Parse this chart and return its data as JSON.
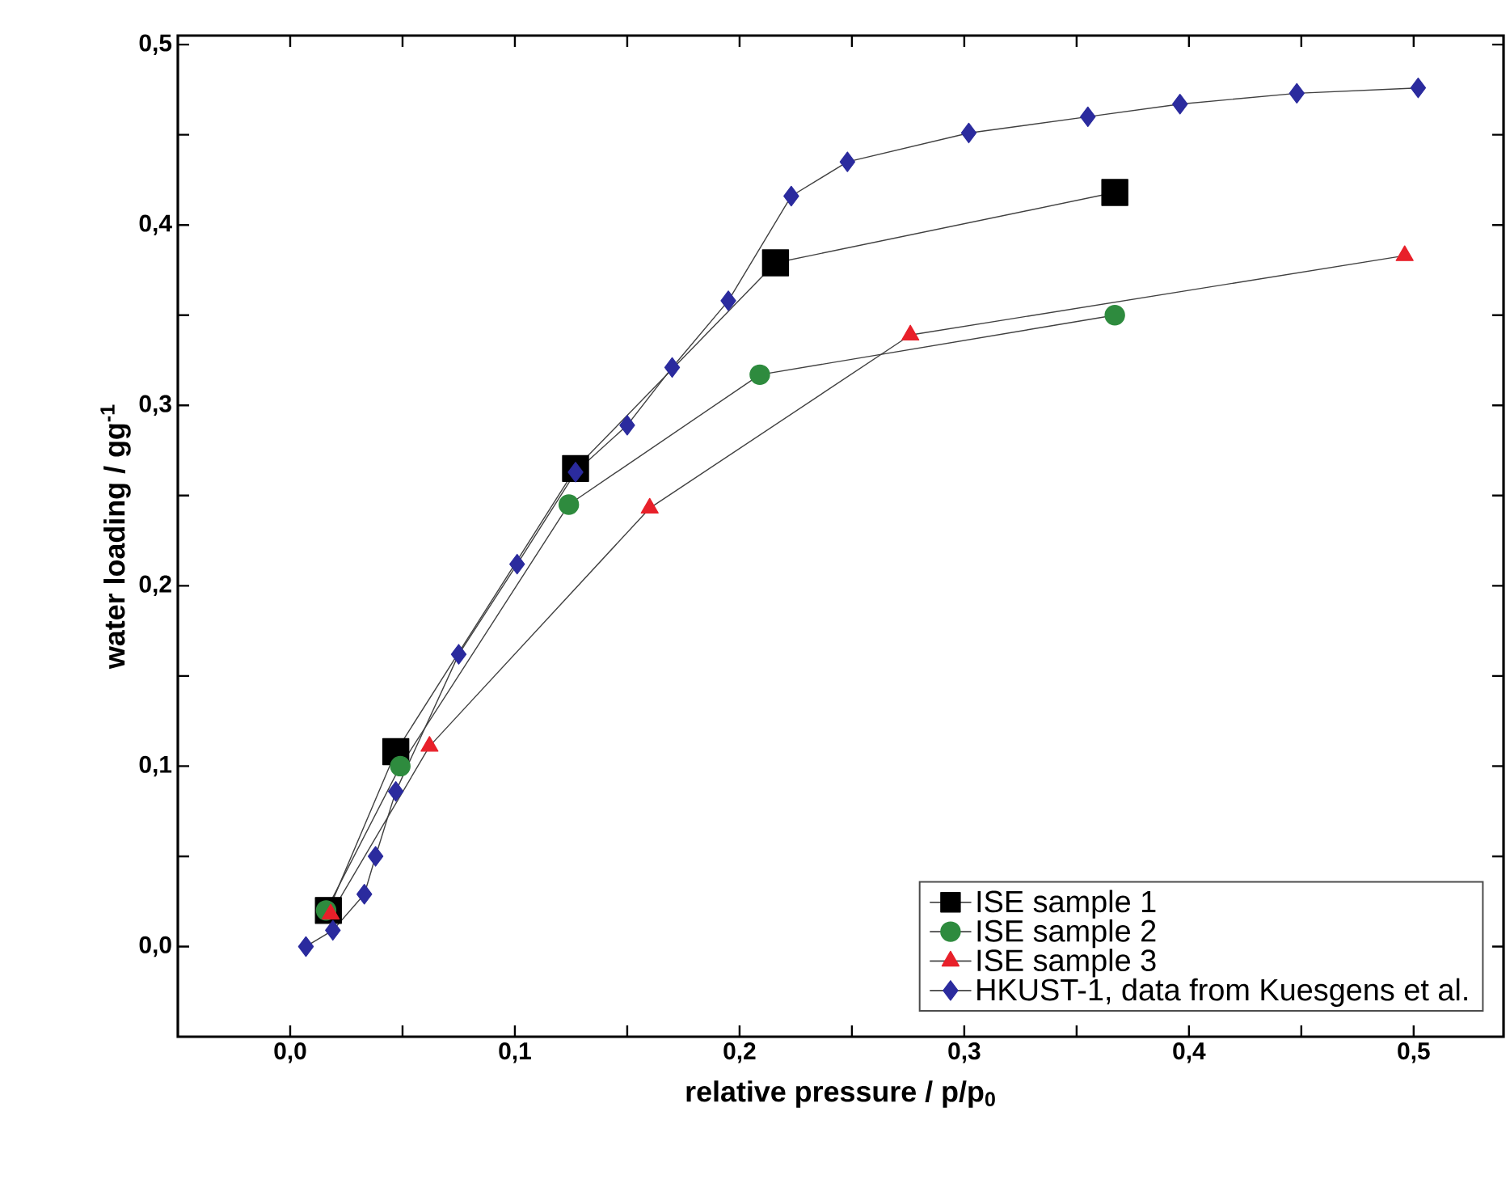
{
  "chart_data": {
    "type": "line",
    "xlabel": "relative pressure / p/p$_{0}$",
    "ylabel": "water loading / gg$^{-1}$",
    "xlim": [
      -0.05,
      0.54
    ],
    "ylim": [
      -0.05,
      0.505
    ],
    "xticks": [
      {
        "value": 0,
        "label": "0,0"
      },
      {
        "value": 0.05,
        "label": null
      },
      {
        "value": 0.1,
        "label": "0,1"
      },
      {
        "value": 0.15,
        "label": null
      },
      {
        "value": 0.2,
        "label": "0,2"
      },
      {
        "value": 0.25,
        "label": null
      },
      {
        "value": 0.3,
        "label": "0,3"
      },
      {
        "value": 0.35,
        "label": null
      },
      {
        "value": 0.4,
        "label": "0,4"
      },
      {
        "value": 0.45,
        "label": null
      },
      {
        "value": 0.5,
        "label": "0,5"
      }
    ],
    "yticks": [
      {
        "value": 0,
        "label": "0,0"
      },
      {
        "value": 0.05,
        "label": null
      },
      {
        "value": 0.1,
        "label": "0,1"
      },
      {
        "value": 0.15,
        "label": null
      },
      {
        "value": 0.2,
        "label": "0,2"
      },
      {
        "value": 0.25,
        "label": null
      },
      {
        "value": 0.3,
        "label": "0,3"
      },
      {
        "value": 0.35,
        "label": null
      },
      {
        "value": 0.4,
        "label": "0,4"
      },
      {
        "value": 0.45,
        "label": null
      },
      {
        "value": 0.5,
        "label": "0,5"
      }
    ],
    "legend": "bottom right",
    "grid": false,
    "line_style": "solid",
    "series": [
      {
        "name": "ISE sample 1",
        "color": "#000000",
        "marker": "square",
        "x": [
          0.017,
          0.047,
          0.127,
          0.216,
          0.367
        ],
        "values": [
          0.02,
          0.108,
          0.265,
          0.379,
          0.418
        ]
      },
      {
        "name": "ISE sample 2",
        "color": "#2e8b3e",
        "marker": "circle",
        "x": [
          0.016,
          0.049,
          0.124,
          0.209,
          0.367
        ],
        "values": [
          0.02,
          0.1,
          0.245,
          0.317,
          0.35
        ]
      },
      {
        "name": "ISE sample 3",
        "color": "#e8202a",
        "marker": "triangle",
        "x": [
          0.018,
          0.062,
          0.16,
          0.276,
          0.496
        ],
        "values": [
          0.018,
          0.111,
          0.243,
          0.339,
          0.383
        ]
      },
      {
        "name": "HKUST-1, data from Kuesgens et al.",
        "color": "#2b2b9e",
        "marker": "diamond",
        "x": [
          0.007,
          0.019,
          0.033,
          0.038,
          0.047,
          0.075,
          0.101,
          0.127,
          0.15,
          0.17,
          0.195,
          0.223,
          0.248,
          0.302,
          0.355,
          0.396,
          0.448,
          0.502
        ],
        "values": [
          0.0,
          0.009,
          0.029,
          0.05,
          0.086,
          0.162,
          0.212,
          0.263,
          0.289,
          0.321,
          0.358,
          0.416,
          0.435,
          0.451,
          0.46,
          0.467,
          0.473,
          0.476
        ]
      }
    ]
  }
}
